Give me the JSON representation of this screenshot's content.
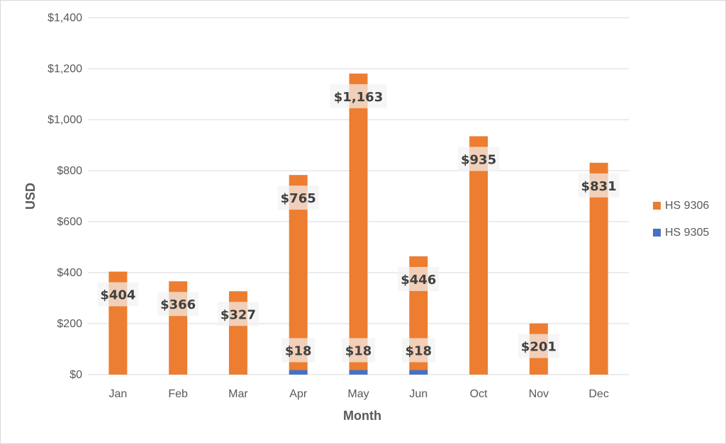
{
  "chart_data": {
    "type": "bar",
    "stacked": true,
    "title": "",
    "xlabel": "Month",
    "ylabel": "USD",
    "ylim": [
      0,
      1400
    ],
    "y_ticks": [
      0,
      200,
      400,
      600,
      800,
      1000,
      1200,
      1400
    ],
    "y_tick_labels": [
      "$0",
      "$200",
      "$400",
      "$600",
      "$800",
      "$1,000",
      "$1,200",
      "$1,400"
    ],
    "categories": [
      "Jan",
      "Feb",
      "Mar",
      "Apr",
      "May",
      "Jun",
      "Oct",
      "Nov",
      "Dec"
    ],
    "series": [
      {
        "name": "HS 9305",
        "color": "#4472c4",
        "values": [
          0,
          0,
          0,
          18,
          18,
          18,
          0,
          0,
          0
        ],
        "labels": [
          "",
          "",
          "",
          "$18",
          "$18",
          "$18",
          "",
          "",
          ""
        ]
      },
      {
        "name": "HS 9306",
        "color": "#ed7d31",
        "values": [
          404,
          366,
          327,
          765,
          1163,
          446,
          935,
          201,
          831
        ],
        "labels": [
          "$404",
          "$366",
          "$327",
          "$765",
          "$1,163",
          "$446",
          "$935",
          "$201",
          "$831"
        ]
      }
    ],
    "legend": {
      "position": "right",
      "entries": [
        {
          "name": "HS 9306",
          "color": "#ed7d31"
        },
        {
          "name": "HS 9305",
          "color": "#4472c4"
        }
      ]
    },
    "grid": true
  }
}
